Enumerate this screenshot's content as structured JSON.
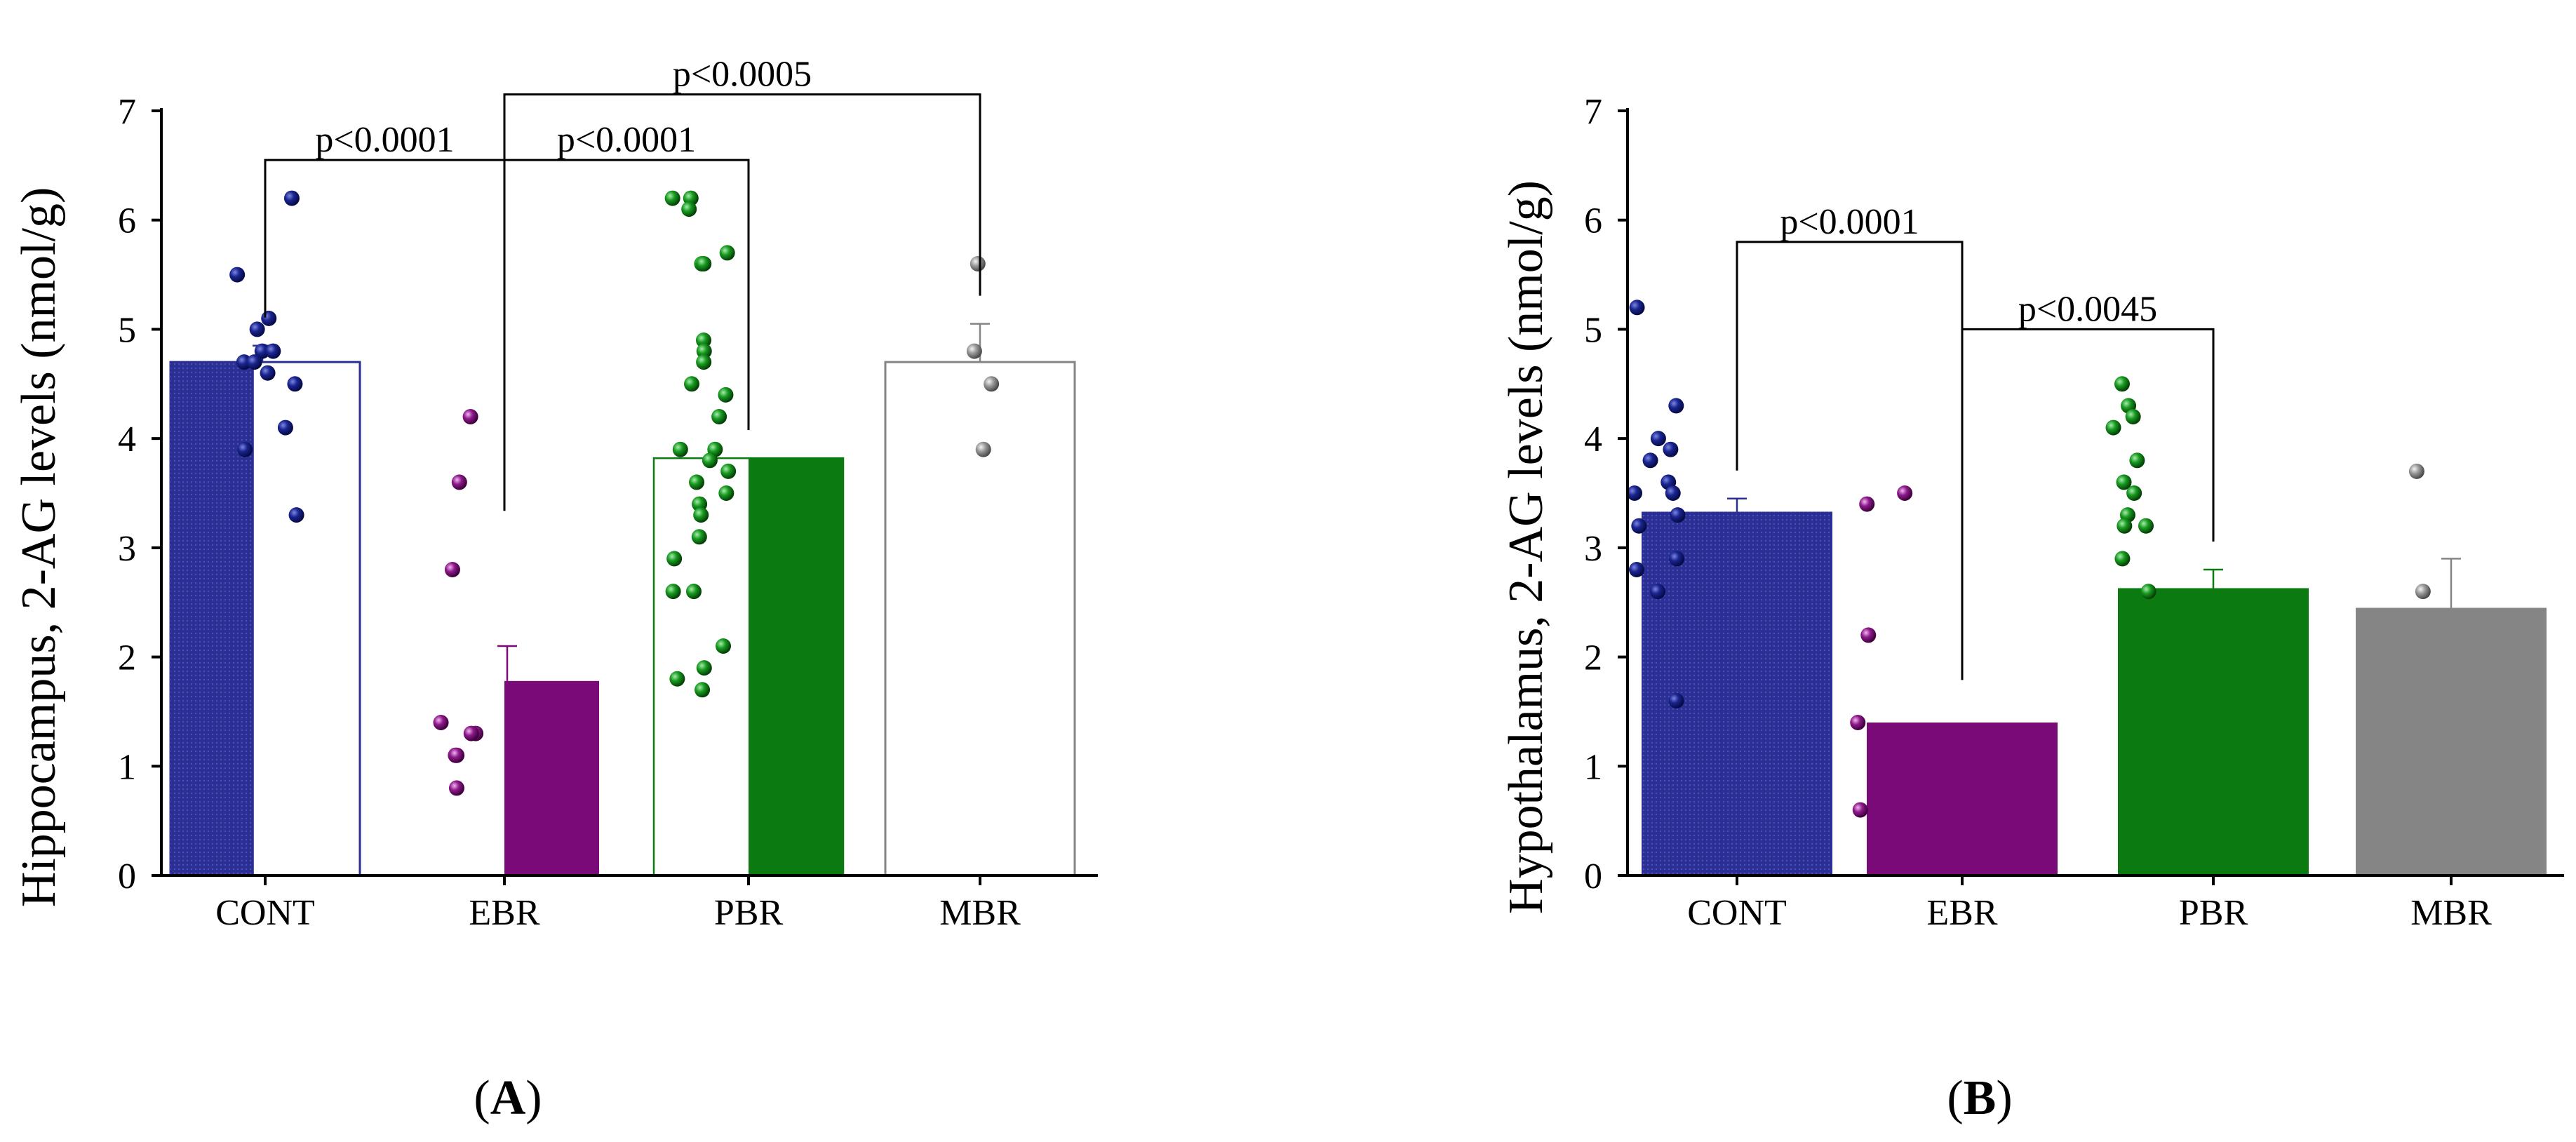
{
  "colors": {
    "CONT": "#2b2f94",
    "CONT_dot": "#0b1673",
    "EBR": "#7a0a78",
    "EBR_dot": "#861383",
    "PBR": "#0b7a10",
    "PBR_dot": "#14861a",
    "MBR": "#858585",
    "MBR_dot": "#8c8c8c"
  },
  "chart_data": [
    {
      "panel": "A",
      "panel_label": "A",
      "type": "bar",
      "ylabel": "Hippocampus, 2-AG levels (nmol/g)",
      "ylim": [
        0,
        7
      ],
      "yticks": [
        0,
        1,
        2,
        3,
        4,
        5,
        6,
        7
      ],
      "categories": [
        "CONT",
        "EBR",
        "PBR",
        "MBR"
      ],
      "groups": [
        {
          "name": "CONT",
          "mean": 4.7,
          "err": 0.15,
          "style": "left-filled",
          "dot_side": "right",
          "points": [
            6.2,
            5.5,
            5.1,
            5.0,
            4.8,
            4.8,
            4.7,
            4.7,
            4.6,
            4.5,
            4.1,
            3.9,
            3.3
          ]
        },
        {
          "name": "EBR",
          "mean": 1.78,
          "err": 0.32,
          "style": "right-filled",
          "dot_side": "left",
          "points": [
            4.2,
            3.6,
            2.8,
            1.4,
            1.3,
            1.3,
            1.1,
            1.1,
            0.8
          ]
        },
        {
          "name": "PBR",
          "mean": 3.82,
          "err": 0.0,
          "style": "right-filled",
          "dot_side": "left",
          "points": [
            6.2,
            6.2,
            6.1,
            5.7,
            5.6,
            5.6,
            4.9,
            4.8,
            4.7,
            4.5,
            4.4,
            4.2,
            3.9,
            3.9,
            3.8,
            3.7,
            3.6,
            3.5,
            3.4,
            3.3,
            3.1,
            2.9,
            2.6,
            2.6,
            2.1,
            1.9,
            1.8,
            1.7
          ]
        },
        {
          "name": "MBR",
          "mean": 4.7,
          "err": 0.35,
          "style": "outline",
          "dot_side": "center",
          "points": [
            5.6,
            4.8,
            4.5,
            3.9
          ]
        }
      ],
      "comparisons": [
        {
          "from": "CONT",
          "to": "EBR",
          "label": "p<0.0001",
          "level": 6.55
        },
        {
          "from": "EBR",
          "to": "PBR",
          "label": "p<0.0001",
          "level": 6.55
        },
        {
          "from": "EBR",
          "to": "MBR",
          "label": "p<0.0005",
          "level": 7.15
        }
      ]
    },
    {
      "panel": "B",
      "panel_label": "B",
      "type": "bar",
      "ylabel": "Hypothalamus, 2-AG levels (nmol/g)",
      "ylim": [
        0,
        7
      ],
      "yticks": [
        0,
        1,
        2,
        3,
        4,
        5,
        6,
        7
      ],
      "categories": [
        "CONT",
        "EBR",
        "PBR",
        "MBR"
      ],
      "groups": [
        {
          "name": "CONT",
          "mean": 3.33,
          "err": 0.12,
          "style": "filled",
          "dot_side": "center",
          "points": [
            5.2,
            4.3,
            4.0,
            3.9,
            3.8,
            3.6,
            3.5,
            3.5,
            3.3,
            3.2,
            2.9,
            2.8,
            2.6,
            1.6
          ]
        },
        {
          "name": "EBR",
          "mean": 1.4,
          "err": 0.0,
          "style": "filled",
          "dot_side": "center",
          "points": [
            3.5,
            3.4,
            2.2,
            1.4,
            0.6
          ]
        },
        {
          "name": "PBR",
          "mean": 2.63,
          "err": 0.17,
          "style": "filled",
          "dot_side": "center",
          "points": [
            4.5,
            4.3,
            4.2,
            4.1,
            3.8,
            3.6,
            3.5,
            3.3,
            3.2,
            3.2,
            2.9,
            2.6
          ]
        },
        {
          "name": "MBR",
          "mean": 2.45,
          "err": 0.45,
          "style": "filled",
          "dot_side": "center",
          "points": [
            3.7,
            2.6
          ]
        }
      ],
      "comparisons": [
        {
          "from": "CONT",
          "to": "EBR",
          "label": "p<0.0001",
          "level": 5.8
        },
        {
          "from": "EBR",
          "to": "PBR",
          "label": "p<0.0045",
          "level": 5.0
        }
      ]
    }
  ]
}
